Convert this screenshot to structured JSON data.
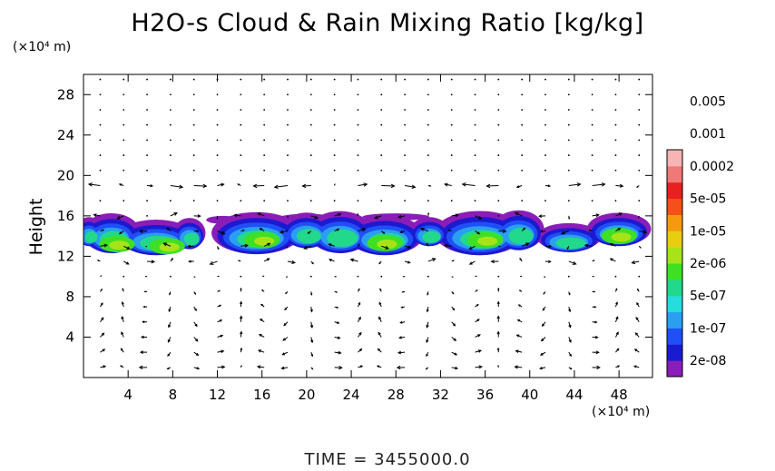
{
  "chart_data": {
    "type": "heatmap",
    "title": "H2O-s Cloud & Rain Mixing Ratio [kg/kg]",
    "ylabel": "Height",
    "y_unit": "(×10⁴ m)",
    "x_unit": "(×10⁴ m)",
    "xlim": [
      0,
      51
    ],
    "ylim": [
      0,
      30
    ],
    "x_ticks": [
      "4",
      "8",
      "12",
      "16",
      "20",
      "24",
      "28",
      "32",
      "36",
      "40",
      "44",
      "48"
    ],
    "x_tick_values": [
      4,
      8,
      12,
      16,
      20,
      24,
      28,
      32,
      36,
      40,
      44,
      48
    ],
    "y_ticks": [
      "4",
      "8",
      "12",
      "16",
      "20",
      "24",
      "28"
    ],
    "y_tick_values": [
      4,
      8,
      12,
      16,
      20,
      24,
      28
    ],
    "colorbar": {
      "colors": [
        "#8a1cb8",
        "#1a1ad0",
        "#1f4ff5",
        "#2a9ff0",
        "#26dcdc",
        "#22d88a",
        "#3fe024",
        "#a8e31a",
        "#e8ce10",
        "#f59a10",
        "#f5501a",
        "#e82020",
        "#f07878",
        "#f7b4b4"
      ],
      "labels": [
        "2e-08",
        "1e-07",
        "5e-07",
        "2e-06",
        "1e-05",
        "5e-05",
        "0.0002",
        "0.001",
        "0.005"
      ]
    },
    "footer": "TIME = 3455000.0"
  }
}
